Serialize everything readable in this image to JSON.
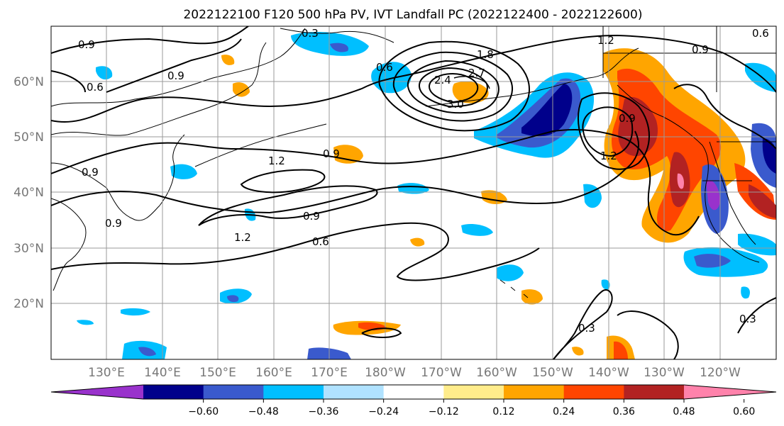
{
  "title": "2022122100 F120 500 hPa PV, IVT Landfall PC (2022122400 - 2022122600)",
  "map": {
    "lat_labels": [
      "60°N",
      "50°N",
      "40°N",
      "30°N",
      "20°N"
    ],
    "lon_labels": [
      "130°E",
      "140°E",
      "150°E",
      "160°E",
      "170°E",
      "180°W",
      "170°W",
      "160°W",
      "150°W",
      "140°W",
      "130°W",
      "120°W"
    ],
    "contour_labels": [
      "0.9",
      "0.3",
      "0.9",
      "0.6",
      "0.9",
      "1.2",
      "0.9",
      "0.9",
      "0.6",
      "1.2",
      "0.9",
      "0.6",
      "1.8",
      "2.4",
      "2.7",
      "3.0",
      "1.2",
      "0.9",
      "1.2",
      "0.3",
      "0.3",
      "0.9",
      "0.6"
    ]
  },
  "colorbar": {
    "ticks": [
      "−0.60",
      "−0.48",
      "−0.36",
      "−0.24",
      "−0.12",
      "0.12",
      "0.24",
      "0.36",
      "0.48",
      "0.60"
    ],
    "colors": [
      "#9932cc",
      "#00008b",
      "#3a5acd",
      "#00bfff",
      "#b0e2ff",
      "#ffffff",
      "#ffec8b",
      "#ffa500",
      "#ff4500",
      "#b22222",
      "#ff82ab"
    ]
  }
}
